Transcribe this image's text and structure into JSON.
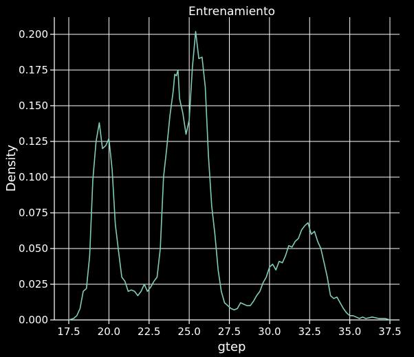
{
  "chart_data": {
    "type": "line",
    "title": "Entrenamiento",
    "xlabel": "gtep",
    "ylabel": "Density",
    "xlim": [
      16.6,
      38.1
    ],
    "ylim": [
      0,
      0.212
    ],
    "x_ticks": [
      17.5,
      20.0,
      22.5,
      25.0,
      27.5,
      30.0,
      32.5,
      35.0,
      37.5
    ],
    "x_tick_labels": [
      "17.5",
      "20.0",
      "22.5",
      "25.0",
      "27.5",
      "30.0",
      "32.5",
      "35.0",
      "37.5"
    ],
    "y_ticks": [
      0,
      0.025,
      0.05,
      0.075,
      0.1,
      0.125,
      0.15,
      0.175,
      0.2
    ],
    "y_tick_labels": [
      "0.000",
      "0.025",
      "0.050",
      "0.075",
      "0.100",
      "0.125",
      "0.150",
      "0.175",
      "0.200"
    ],
    "grid": true,
    "series": [
      {
        "color": "#7fcdbb",
        "x": [
          17.5,
          17.8,
          18.0,
          18.2,
          18.4,
          18.6,
          18.8,
          19.0,
          19.2,
          19.4,
          19.6,
          19.8,
          20.0,
          20.2,
          20.4,
          20.6,
          20.8,
          21.0,
          21.2,
          21.4,
          21.6,
          21.8,
          22.0,
          22.2,
          22.4,
          22.6,
          22.8,
          23.0,
          23.2,
          23.4,
          23.6,
          23.8,
          24.0,
          24.1,
          24.2,
          24.3,
          24.4,
          24.6,
          24.8,
          25.0,
          25.2,
          25.4,
          25.6,
          25.8,
          26.0,
          26.2,
          26.4,
          26.6,
          26.8,
          27.0,
          27.2,
          27.4,
          27.6,
          27.8,
          28.0,
          28.2,
          28.4,
          28.6,
          28.8,
          29.0,
          29.2,
          29.4,
          29.6,
          29.8,
          30.0,
          30.2,
          30.4,
          30.6,
          30.8,
          31.0,
          31.2,
          31.4,
          31.6,
          31.8,
          32.0,
          32.2,
          32.4,
          32.6,
          32.8,
          33.0,
          33.2,
          33.4,
          33.6,
          33.8,
          34.0,
          34.2,
          34.4,
          34.6,
          34.8,
          35.0,
          35.2,
          35.4,
          35.6,
          35.8,
          36.0,
          36.4,
          36.8,
          37.2,
          37.5
        ],
        "y": [
          0.0,
          0.001,
          0.003,
          0.008,
          0.02,
          0.022,
          0.045,
          0.098,
          0.125,
          0.138,
          0.12,
          0.122,
          0.127,
          0.105,
          0.067,
          0.048,
          0.03,
          0.027,
          0.02,
          0.021,
          0.02,
          0.017,
          0.02,
          0.025,
          0.02,
          0.023,
          0.027,
          0.03,
          0.05,
          0.1,
          0.12,
          0.143,
          0.16,
          0.172,
          0.171,
          0.175,
          0.155,
          0.145,
          0.13,
          0.14,
          0.177,
          0.202,
          0.183,
          0.184,
          0.163,
          0.115,
          0.08,
          0.06,
          0.035,
          0.02,
          0.012,
          0.01,
          0.008,
          0.007,
          0.008,
          0.012,
          0.011,
          0.01,
          0.01,
          0.013,
          0.017,
          0.02,
          0.026,
          0.03,
          0.037,
          0.039,
          0.035,
          0.041,
          0.04,
          0.045,
          0.052,
          0.051,
          0.055,
          0.057,
          0.063,
          0.066,
          0.068,
          0.06,
          0.062,
          0.055,
          0.05,
          0.04,
          0.03,
          0.017,
          0.015,
          0.016,
          0.012,
          0.008,
          0.005,
          0.003,
          0.003,
          0.002,
          0.001,
          0.002,
          0.001,
          0.002,
          0.001,
          0.001,
          0.0
        ]
      }
    ]
  }
}
